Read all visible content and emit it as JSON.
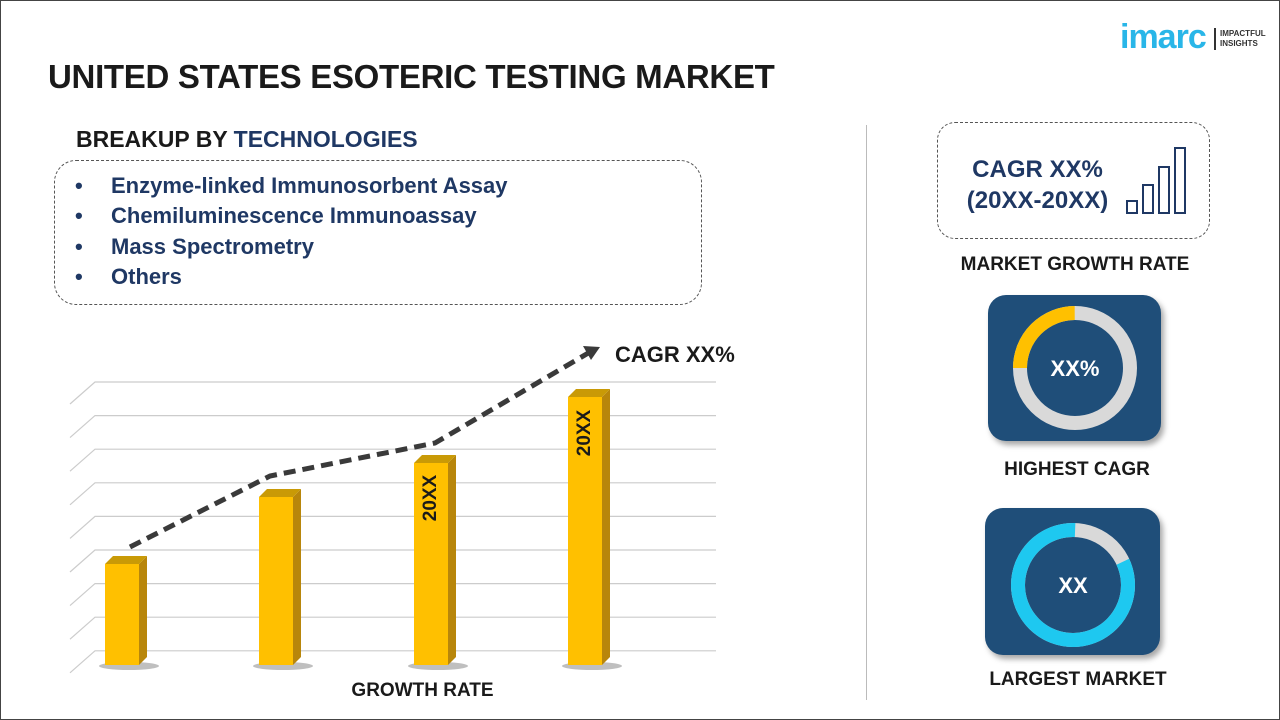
{
  "title": "UNITED STATES ESOTERIC TESTING MARKET",
  "logo": {
    "brand": "imarc",
    "tagline_1": "IMPACTFUL",
    "tagline_2": "INSIGHTS"
  },
  "breakup": {
    "prefix": "BREAKUP BY ",
    "category": "TECHNOLOGIES",
    "items": [
      "Enzyme-linked Immunosorbent Assay",
      "Chemiluminescence Immunoassay",
      "Mass Spectrometry",
      "Others"
    ]
  },
  "chart": {
    "trend_label": "CAGR XX%",
    "x_label": "GROWTH RATE",
    "bar_labels": [
      "",
      "",
      "20XX",
      "20XX"
    ],
    "bar_color": "#FFC000",
    "line_color": "#3a3a3a"
  },
  "right": {
    "cagr_line1": "CAGR XX%",
    "cagr_line2": "(20XX-20XX)",
    "market_growth_caption": "MARKET GROWTH RATE",
    "highest_value": "XX%",
    "highest_caption": "HIGHEST CAGR",
    "largest_value": "XX",
    "largest_caption": "LARGEST MARKET",
    "tile_color": "#1F4E79",
    "highest_ring_color": "#FFC000",
    "largest_ring_color": "#1EC8F0"
  }
}
